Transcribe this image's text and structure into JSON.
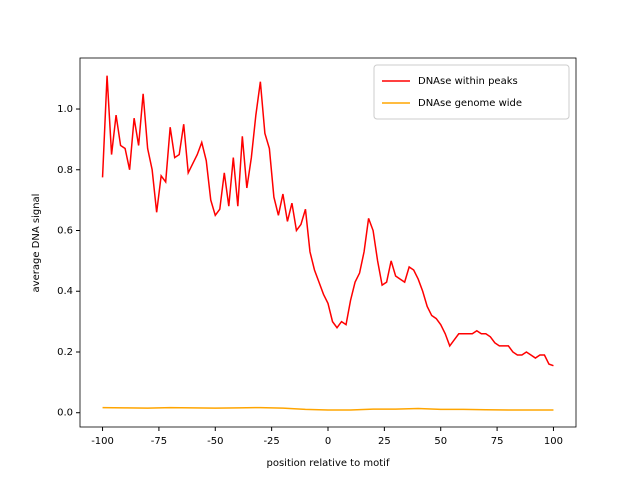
{
  "chart_data": {
    "type": "line",
    "xlabel": "position relative to motif",
    "ylabel": "average DNA signal",
    "xlim": [
      -110,
      110
    ],
    "ylim": [
      -0.047,
      1.168
    ],
    "xticks": [
      -100,
      -75,
      -50,
      -25,
      0,
      25,
      50,
      75,
      100
    ],
    "yticks": [
      {
        "value": 0,
        "label": "0.0"
      },
      0.2,
      0.4,
      0.6,
      0.8,
      {
        "value": 1,
        "label": "1.0"
      }
    ],
    "legend": "upper right",
    "series": [
      {
        "name": "DNAse within peaks",
        "color": "#ff0000",
        "x": [
          -100,
          -98,
          -96,
          -94,
          -92,
          -90,
          -88,
          -86,
          -84,
          -82,
          -80,
          -78,
          -76,
          -74,
          -72,
          -70,
          -68,
          -66,
          -64,
          -62,
          -60,
          -58,
          -56,
          -54,
          -52,
          -50,
          -48,
          -46,
          -44,
          -42,
          -40,
          -38,
          -36,
          -34,
          -32,
          -30,
          -28,
          -26,
          -24,
          -22,
          -20,
          -18,
          -16,
          -14,
          -12,
          -10,
          -8,
          -6,
          -4,
          -2,
          0,
          2,
          4,
          6,
          8,
          10,
          12,
          14,
          16,
          18,
          20,
          22,
          24,
          26,
          28,
          30,
          32,
          34,
          36,
          38,
          40,
          42,
          44,
          46,
          48,
          50,
          52,
          54,
          56,
          58,
          60,
          62,
          64,
          66,
          68,
          70,
          72,
          74,
          76,
          78,
          80,
          82,
          84,
          86,
          88,
          90,
          92,
          94,
          96,
          98,
          100
        ],
        "values": [
          0.775,
          1.11,
          0.85,
          0.98,
          0.88,
          0.87,
          0.8,
          0.97,
          0.88,
          1.05,
          0.87,
          0.8,
          0.66,
          0.78,
          0.76,
          0.94,
          0.84,
          0.85,
          0.95,
          0.79,
          0.82,
          0.85,
          0.89,
          0.83,
          0.7,
          0.65,
          0.67,
          0.79,
          0.68,
          0.84,
          0.68,
          0.91,
          0.74,
          0.84,
          0.98,
          1.09,
          0.92,
          0.87,
          0.71,
          0.65,
          0.72,
          0.63,
          0.69,
          0.6,
          0.62,
          0.67,
          0.53,
          0.47,
          0.43,
          0.39,
          0.36,
          0.3,
          0.28,
          0.3,
          0.29,
          0.37,
          0.43,
          0.46,
          0.53,
          0.64,
          0.6,
          0.5,
          0.42,
          0.43,
          0.5,
          0.45,
          0.44,
          0.43,
          0.48,
          0.47,
          0.44,
          0.4,
          0.35,
          0.32,
          0.31,
          0.29,
          0.26,
          0.22,
          0.24,
          0.26,
          0.26,
          0.26,
          0.26,
          0.27,
          0.26,
          0.26,
          0.25,
          0.23,
          0.22,
          0.22,
          0.22,
          0.2,
          0.19,
          0.19,
          0.2,
          0.19,
          0.18,
          0.19,
          0.19,
          0.16,
          0.155
        ]
      },
      {
        "name": "DNAse genome wide",
        "color": "#ffa500",
        "x": [
          -100,
          -90,
          -80,
          -70,
          -60,
          -50,
          -40,
          -30,
          -20,
          -10,
          0,
          10,
          20,
          30,
          40,
          50,
          60,
          70,
          80,
          90,
          100
        ],
        "values": [
          0.017,
          0.016,
          0.015,
          0.017,
          0.016,
          0.015,
          0.016,
          0.017,
          0.015,
          0.011,
          0.009,
          0.009,
          0.012,
          0.012,
          0.014,
          0.011,
          0.011,
          0.01,
          0.009,
          0.009,
          0.009
        ]
      }
    ]
  }
}
